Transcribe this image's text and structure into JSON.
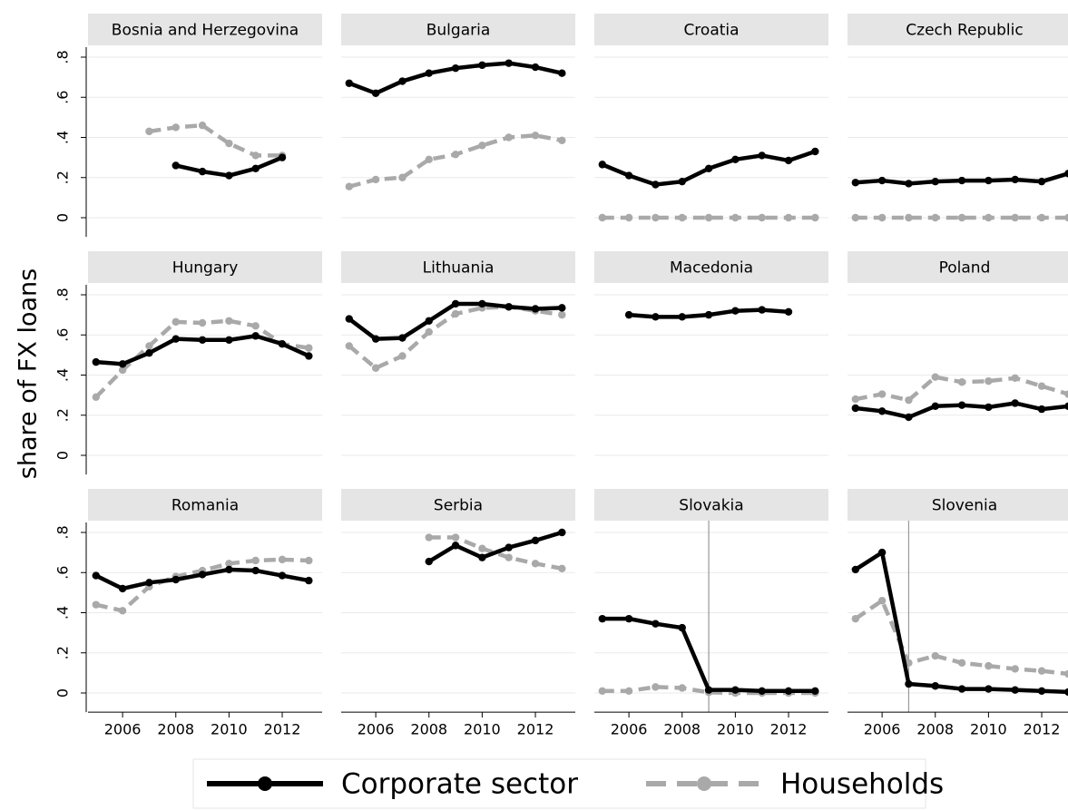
{
  "chart_data": {
    "type": "line",
    "ylabel": "share of FX loans",
    "x": [
      2005,
      2006,
      2007,
      2008,
      2009,
      2010,
      2011,
      2012,
      2013
    ],
    "xlim": [
      2004.7,
      2013.5
    ],
    "xticks": [
      2006,
      2008,
      2010,
      2012
    ],
    "ylim": [
      -0.05,
      0.85
    ],
    "yticks": [
      {
        "value": 0,
        "label": "0"
      },
      {
        "value": 0.2,
        "label": ".2"
      },
      {
        "value": 0.4,
        "label": ".4"
      },
      {
        "value": 0.6,
        "label": ".6"
      },
      {
        "value": 0.8,
        "label": ".8"
      }
    ],
    "grid": true,
    "series": [
      {
        "name": "Corporate sector",
        "color": "#000000",
        "dashed": false
      },
      {
        "name": "Households",
        "color": "#a9a9a9",
        "dashed": true
      }
    ],
    "panels": [
      {
        "title": "Bosnia and Herzegovina",
        "values": [
          [
            null,
            null,
            null,
            0.26,
            0.23,
            0.21,
            0.245,
            0.3,
            null
          ],
          [
            null,
            null,
            0.43,
            0.45,
            0.46,
            0.37,
            0.31,
            0.31,
            null
          ]
        ]
      },
      {
        "title": "Bulgaria",
        "values": [
          [
            0.67,
            0.62,
            0.68,
            0.72,
            0.745,
            0.76,
            0.77,
            0.75,
            0.72
          ],
          [
            0.155,
            0.19,
            0.2,
            0.29,
            0.315,
            0.36,
            0.4,
            0.41,
            0.385
          ]
        ]
      },
      {
        "title": "Croatia",
        "values": [
          [
            0.265,
            0.21,
            0.165,
            0.18,
            0.245,
            0.29,
            0.31,
            0.285,
            0.33
          ],
          [
            0,
            0,
            0,
            0,
            0,
            0,
            0,
            0,
            0
          ]
        ]
      },
      {
        "title": "Czech Republic",
        "values": [
          [
            0.175,
            0.185,
            0.17,
            0.18,
            0.185,
            0.185,
            0.19,
            0.18,
            0.22
          ],
          [
            0,
            0,
            0,
            0,
            0,
            0,
            0,
            0,
            0
          ]
        ]
      },
      {
        "title": "Hungary",
        "values": [
          [
            0.465,
            0.455,
            0.51,
            0.58,
            0.575,
            0.575,
            0.595,
            0.555,
            0.495
          ],
          [
            0.29,
            0.425,
            0.545,
            0.665,
            0.66,
            0.67,
            0.645,
            0.555,
            0.535
          ]
        ]
      },
      {
        "title": "Lithuania",
        "values": [
          [
            0.68,
            0.58,
            0.585,
            0.67,
            0.755,
            0.755,
            0.74,
            0.73,
            0.735
          ],
          [
            0.545,
            0.435,
            0.495,
            0.615,
            0.705,
            0.735,
            0.74,
            0.72,
            0.7
          ]
        ]
      },
      {
        "title": "Macedonia",
        "values": [
          [
            null,
            0.7,
            0.69,
            0.69,
            0.7,
            0.72,
            0.725,
            0.715,
            null
          ],
          [
            null,
            null,
            null,
            null,
            null,
            null,
            null,
            null,
            null
          ]
        ]
      },
      {
        "title": "Poland",
        "values": [
          [
            0.235,
            0.22,
            0.19,
            0.245,
            0.25,
            0.24,
            0.26,
            0.23,
            0.245
          ],
          [
            0.28,
            0.305,
            0.275,
            0.39,
            0.365,
            0.37,
            0.385,
            0.345,
            0.305
          ]
        ]
      },
      {
        "title": "Romania",
        "values": [
          [
            0.585,
            0.52,
            0.55,
            0.565,
            0.59,
            0.615,
            0.61,
            0.585,
            0.56
          ],
          [
            0.44,
            0.41,
            0.53,
            0.58,
            0.61,
            0.645,
            0.66,
            0.665,
            0.66
          ]
        ]
      },
      {
        "title": "Serbia",
        "values": [
          [
            null,
            null,
            null,
            0.655,
            0.735,
            0.675,
            0.725,
            0.76,
            0.8
          ],
          [
            null,
            null,
            null,
            0.775,
            0.775,
            0.72,
            0.675,
            0.645,
            0.62
          ]
        ]
      },
      {
        "title": "Slovakia",
        "vline": 2009,
        "values": [
          [
            0.37,
            0.37,
            0.345,
            0.325,
            0.015,
            0.015,
            0.01,
            0.01,
            0.01
          ],
          [
            0.01,
            0.01,
            0.03,
            0.025,
            0.003,
            0,
            0,
            0,
            0
          ]
        ]
      },
      {
        "title": "Slovenia",
        "vline": 2007,
        "values": [
          [
            0.615,
            0.7,
            0.045,
            0.035,
            0.02,
            0.02,
            0.015,
            0.01,
            0.005
          ],
          [
            0.37,
            0.46,
            0.15,
            0.185,
            0.15,
            0.135,
            0.12,
            0.11,
            0.095
          ]
        ]
      }
    ]
  }
}
